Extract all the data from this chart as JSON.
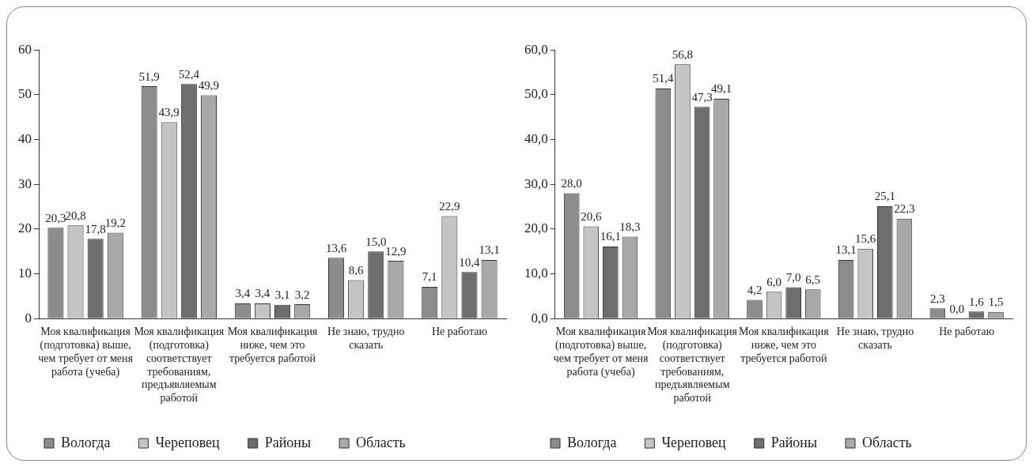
{
  "chart_data": [
    {
      "type": "bar",
      "categories": [
        "Моя квалификация (подготовка) выше, чем требует от меня работа (учеба)",
        "Моя квалификация (подготовка) соответствует требованиям, предъявляемым работой",
        "Моя квалификация ниже, чем это требуется работой",
        "Не знаю, трудно сказать",
        "Не работаю"
      ],
      "series": [
        {
          "name": "Вологда",
          "color": "#8c8c8c",
          "values": [
            20.3,
            51.9,
            3.4,
            13.6,
            7.1
          ],
          "value_labels": [
            "20,3",
            "51,9",
            "3,4",
            "13,6",
            "7,1"
          ]
        },
        {
          "name": "Череповец",
          "color": "#c4c4c4",
          "values": [
            20.8,
            43.9,
            3.4,
            8.6,
            22.9
          ],
          "value_labels": [
            "20,8",
            "43,9",
            "3,4",
            "8,6",
            "22,9"
          ]
        },
        {
          "name": "Районы",
          "color": "#6e6e6e",
          "values": [
            17.8,
            52.4,
            3.1,
            15.0,
            10.4
          ],
          "value_labels": [
            "17,8",
            "52,4",
            "3,1",
            "15,0",
            "10,4"
          ]
        },
        {
          "name": "Область",
          "color": "#a8a8a8",
          "values": [
            19.2,
            49.9,
            3.2,
            12.9,
            13.1
          ],
          "value_labels": [
            "19,2",
            "49,9",
            "3,2",
            "12,9",
            "13,1"
          ]
        }
      ],
      "ylim": [
        0,
        60
      ],
      "yticks": [
        0,
        10,
        20,
        30,
        40,
        50,
        60
      ],
      "grid": false,
      "legend": "bottom"
    },
    {
      "type": "bar",
      "categories": [
        "Моя квалификация (подготовка) выше, чем требует от меня работа (учеба)",
        "Моя квалификация (подготовка) соответствует требованиям, предъявляемым работой",
        "Моя квалификация ниже, чем это требуется работой",
        "Не знаю, трудно сказать",
        "Не работаю"
      ],
      "series": [
        {
          "name": "Вологда",
          "color": "#8c8c8c",
          "values": [
            28.0,
            51.4,
            4.2,
            13.1,
            2.3
          ],
          "value_labels": [
            "28,0",
            "51,4",
            "4,2",
            "13,1",
            "2,3"
          ]
        },
        {
          "name": "Череповец",
          "color": "#c4c4c4",
          "values": [
            20.6,
            56.8,
            6.0,
            15.6,
            0.0
          ],
          "value_labels": [
            "20,6",
            "56,8",
            "6,0",
            "15,6",
            "0,0"
          ]
        },
        {
          "name": "Районы",
          "color": "#6e6e6e",
          "values": [
            16.1,
            47.3,
            7.0,
            25.1,
            1.6
          ],
          "value_labels": [
            "16,1",
            "47,3",
            "7,0",
            "25,1",
            "1,6"
          ]
        },
        {
          "name": "Область",
          "color": "#a8a8a8",
          "values": [
            18.3,
            49.1,
            6.5,
            22.3,
            1.5
          ],
          "value_labels": [
            "18,3",
            "49,1",
            "6,5",
            "22,3",
            "1,5"
          ]
        }
      ],
      "ylim": [
        0,
        60
      ],
      "yticks": [
        {
          "value": 0,
          "label": "0,0"
        },
        {
          "value": 10,
          "label": "10,0"
        },
        {
          "value": 20,
          "label": "20,0"
        },
        {
          "value": 30,
          "label": "30,0"
        },
        {
          "value": 40,
          "label": "40,0"
        },
        {
          "value": 50,
          "label": "50,0"
        },
        {
          "value": 60,
          "label": "60,0"
        }
      ],
      "grid": false,
      "legend": "bottom"
    }
  ]
}
